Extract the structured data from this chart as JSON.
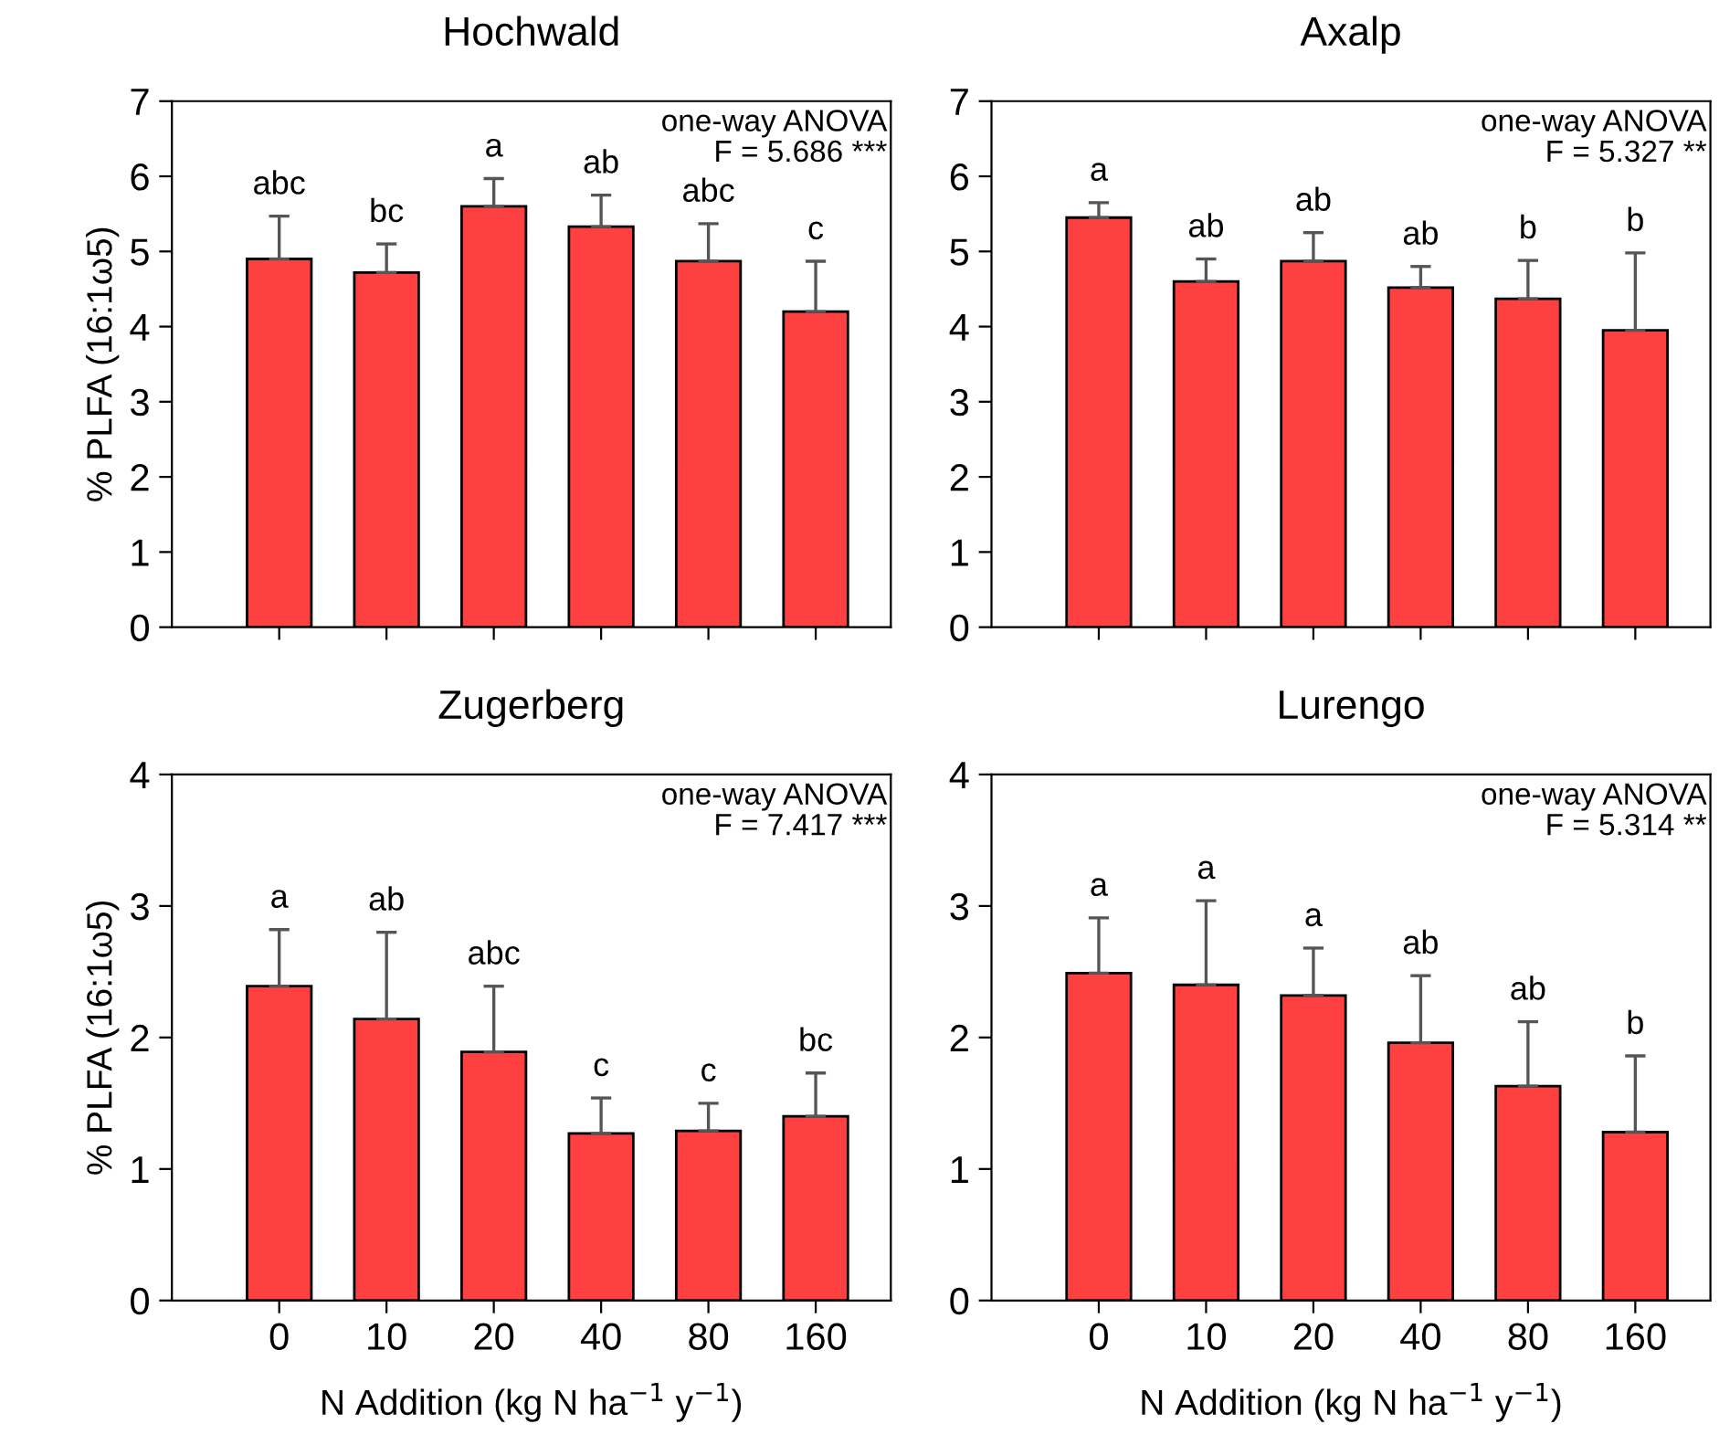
{
  "chart_data": [
    {
      "type": "bar",
      "title": "Hochwald",
      "ylabel": "% PLFA (16:1ω5)",
      "categories": [
        "0",
        "10",
        "20",
        "40",
        "80",
        "160"
      ],
      "tick_labels": "y",
      "color": "#ff4040",
      "values": [
        4.9,
        4.72,
        5.6,
        5.33,
        4.87,
        4.2
      ],
      "errors": [
        [
          4.9,
          5.47
        ],
        [
          4.72,
          5.1
        ],
        [
          5.6,
          5.97
        ],
        [
          5.33,
          5.75
        ],
        [
          4.87,
          5.37
        ],
        [
          4.2,
          4.87
        ]
      ],
      "ylim": [
        0,
        7
      ],
      "yticks": [
        0,
        1,
        2,
        3,
        4,
        5,
        6,
        7
      ],
      "grid": false,
      "legend": false,
      "annotations": [
        "one-way ANOVA\nF = 5.686 ***",
        {
          "text": "abc",
          "x": "0",
          "y": 5.47
        },
        {
          "text": "bc",
          "x": "10",
          "y": 5.1
        },
        {
          "text": "a",
          "x": "20",
          "y": 5.97
        },
        {
          "text": "ab",
          "x": "40",
          "y": 5.75
        },
        {
          "text": "abc",
          "x": "80",
          "y": 5.37
        },
        {
          "text": "c",
          "x": "160",
          "y": 4.87
        }
      ]
    },
    {
      "type": "bar",
      "title": "Axalp",
      "categories": [
        "0",
        "10",
        "20",
        "40",
        "80",
        "160"
      ],
      "tick_labels": "y",
      "color": "#ff4040",
      "values": [
        5.45,
        4.6,
        4.87,
        4.52,
        4.37,
        3.95
      ],
      "errors": [
        [
          5.45,
          5.65
        ],
        [
          4.6,
          4.9
        ],
        [
          4.87,
          5.25
        ],
        [
          4.52,
          4.8
        ],
        [
          4.37,
          4.88
        ],
        [
          3.95,
          4.98
        ]
      ],
      "ylim": [
        0,
        7
      ],
      "yticks": [
        0,
        1,
        2,
        3,
        4,
        5,
        6,
        7
      ],
      "grid": false,
      "legend": false,
      "annotations": [
        "one-way ANOVA\nF = 5.327 **",
        {
          "text": "a",
          "x": "0",
          "y": 5.65
        },
        {
          "text": "ab",
          "x": "10",
          "y": 4.9
        },
        {
          "text": "ab",
          "x": "20",
          "y": 5.25
        },
        {
          "text": "ab",
          "x": "40",
          "y": 4.8
        },
        {
          "text": "b",
          "x": "80",
          "y": 4.88
        },
        {
          "text": "b",
          "x": "160",
          "y": 4.98
        }
      ]
    },
    {
      "type": "bar",
      "title": "Zugerberg",
      "ylabel": "% PLFA (16:1ω5)",
      "xlabel": "N Addition (kg N ha$^{−1}$ y$^{−1}$)",
      "categories": [
        "0",
        "10",
        "20",
        "40",
        "80",
        "160"
      ],
      "color": "#ff4040",
      "values": [
        2.39,
        2.14,
        1.89,
        1.27,
        1.29,
        1.4
      ],
      "errors": [
        [
          2.39,
          2.82
        ],
        [
          2.14,
          2.8
        ],
        [
          1.89,
          2.39
        ],
        [
          1.27,
          1.54
        ],
        [
          1.29,
          1.5
        ],
        [
          1.4,
          1.73
        ]
      ],
      "ylim": [
        0,
        4
      ],
      "yticks": [
        0,
        1,
        2,
        3,
        4
      ],
      "grid": false,
      "legend": false,
      "annotations": [
        "one-way ANOVA\nF = 7.417 ***",
        {
          "text": "a",
          "x": "0",
          "y": 2.82
        },
        {
          "text": "ab",
          "x": "10",
          "y": 2.8
        },
        {
          "text": "abc",
          "x": "20",
          "y": 2.39
        },
        {
          "text": "c",
          "x": "40",
          "y": 1.54
        },
        {
          "text": "c",
          "x": "80",
          "y": 1.5
        },
        {
          "text": "bc",
          "x": "160",
          "y": 1.73
        }
      ]
    },
    {
      "type": "bar",
      "title": "Lurengo",
      "xlabel": "N Addition (kg N ha$^{−1}$ y$^{−1}$)",
      "categories": [
        "0",
        "10",
        "20",
        "40",
        "80",
        "160"
      ],
      "color": "#ff4040",
      "values": [
        2.49,
        2.4,
        2.32,
        1.96,
        1.63,
        1.28
      ],
      "errors": [
        [
          2.49,
          2.91
        ],
        [
          2.4,
          3.04
        ],
        [
          2.32,
          2.68
        ],
        [
          1.96,
          2.47
        ],
        [
          1.63,
          2.12
        ],
        [
          1.28,
          1.86
        ]
      ],
      "ylim": [
        0,
        4
      ],
      "yticks": [
        0,
        1,
        2,
        3,
        4
      ],
      "grid": false,
      "legend": false,
      "annotations": [
        "one-way ANOVA\nF = 5.314 **",
        {
          "text": "a",
          "x": "0",
          "y": 2.91
        },
        {
          "text": "a",
          "x": "10",
          "y": 3.04
        },
        {
          "text": "a",
          "x": "20",
          "y": 2.68
        },
        {
          "text": "ab",
          "x": "40",
          "y": 2.47
        },
        {
          "text": "ab",
          "x": "80",
          "y": 2.12
        },
        {
          "text": "b",
          "x": "160",
          "y": 1.86
        }
      ]
    }
  ]
}
